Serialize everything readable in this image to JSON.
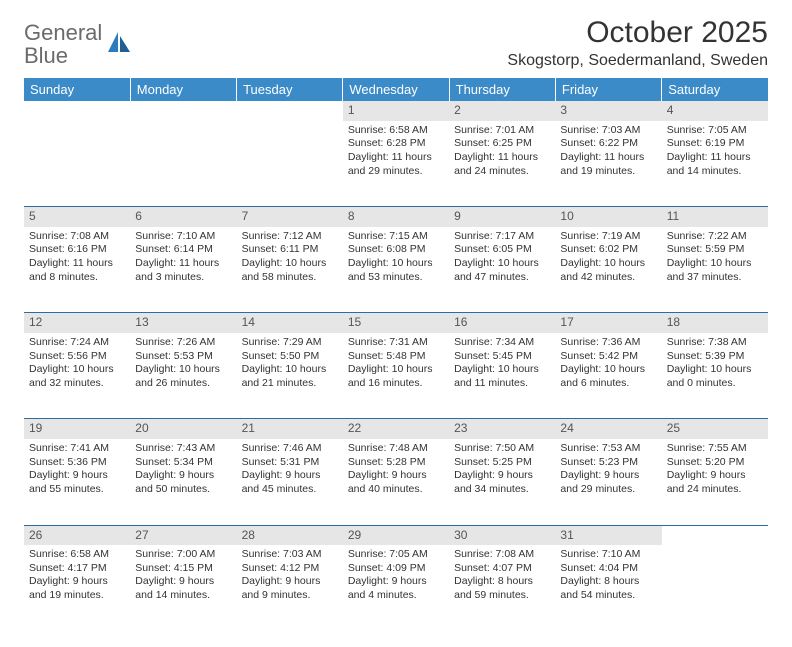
{
  "logo": {
    "part1": "General",
    "part2": "Blue"
  },
  "title": "October 2025",
  "location": "Skogstorp, Soedermanland, Sweden",
  "colors": {
    "header_bg": "#3b8bc8",
    "header_text": "#ffffff",
    "daynum_bg": "#e6e6e6",
    "border": "#2a6ca3",
    "text": "#333333",
    "logo_gray": "#6b6b6b",
    "logo_blue": "#2a7bbf"
  },
  "day_headers": [
    "Sunday",
    "Monday",
    "Tuesday",
    "Wednesday",
    "Thursday",
    "Friday",
    "Saturday"
  ],
  "weeks": [
    [
      null,
      null,
      null,
      {
        "n": "1",
        "sr": "Sunrise: 6:58 AM",
        "ss": "Sunset: 6:28 PM",
        "dl1": "Daylight: 11 hours",
        "dl2": "and 29 minutes."
      },
      {
        "n": "2",
        "sr": "Sunrise: 7:01 AM",
        "ss": "Sunset: 6:25 PM",
        "dl1": "Daylight: 11 hours",
        "dl2": "and 24 minutes."
      },
      {
        "n": "3",
        "sr": "Sunrise: 7:03 AM",
        "ss": "Sunset: 6:22 PM",
        "dl1": "Daylight: 11 hours",
        "dl2": "and 19 minutes."
      },
      {
        "n": "4",
        "sr": "Sunrise: 7:05 AM",
        "ss": "Sunset: 6:19 PM",
        "dl1": "Daylight: 11 hours",
        "dl2": "and 14 minutes."
      }
    ],
    [
      {
        "n": "5",
        "sr": "Sunrise: 7:08 AM",
        "ss": "Sunset: 6:16 PM",
        "dl1": "Daylight: 11 hours",
        "dl2": "and 8 minutes."
      },
      {
        "n": "6",
        "sr": "Sunrise: 7:10 AM",
        "ss": "Sunset: 6:14 PM",
        "dl1": "Daylight: 11 hours",
        "dl2": "and 3 minutes."
      },
      {
        "n": "7",
        "sr": "Sunrise: 7:12 AM",
        "ss": "Sunset: 6:11 PM",
        "dl1": "Daylight: 10 hours",
        "dl2": "and 58 minutes."
      },
      {
        "n": "8",
        "sr": "Sunrise: 7:15 AM",
        "ss": "Sunset: 6:08 PM",
        "dl1": "Daylight: 10 hours",
        "dl2": "and 53 minutes."
      },
      {
        "n": "9",
        "sr": "Sunrise: 7:17 AM",
        "ss": "Sunset: 6:05 PM",
        "dl1": "Daylight: 10 hours",
        "dl2": "and 47 minutes."
      },
      {
        "n": "10",
        "sr": "Sunrise: 7:19 AM",
        "ss": "Sunset: 6:02 PM",
        "dl1": "Daylight: 10 hours",
        "dl2": "and 42 minutes."
      },
      {
        "n": "11",
        "sr": "Sunrise: 7:22 AM",
        "ss": "Sunset: 5:59 PM",
        "dl1": "Daylight: 10 hours",
        "dl2": "and 37 minutes."
      }
    ],
    [
      {
        "n": "12",
        "sr": "Sunrise: 7:24 AM",
        "ss": "Sunset: 5:56 PM",
        "dl1": "Daylight: 10 hours",
        "dl2": "and 32 minutes."
      },
      {
        "n": "13",
        "sr": "Sunrise: 7:26 AM",
        "ss": "Sunset: 5:53 PM",
        "dl1": "Daylight: 10 hours",
        "dl2": "and 26 minutes."
      },
      {
        "n": "14",
        "sr": "Sunrise: 7:29 AM",
        "ss": "Sunset: 5:50 PM",
        "dl1": "Daylight: 10 hours",
        "dl2": "and 21 minutes."
      },
      {
        "n": "15",
        "sr": "Sunrise: 7:31 AM",
        "ss": "Sunset: 5:48 PM",
        "dl1": "Daylight: 10 hours",
        "dl2": "and 16 minutes."
      },
      {
        "n": "16",
        "sr": "Sunrise: 7:34 AM",
        "ss": "Sunset: 5:45 PM",
        "dl1": "Daylight: 10 hours",
        "dl2": "and 11 minutes."
      },
      {
        "n": "17",
        "sr": "Sunrise: 7:36 AM",
        "ss": "Sunset: 5:42 PM",
        "dl1": "Daylight: 10 hours",
        "dl2": "and 6 minutes."
      },
      {
        "n": "18",
        "sr": "Sunrise: 7:38 AM",
        "ss": "Sunset: 5:39 PM",
        "dl1": "Daylight: 10 hours",
        "dl2": "and 0 minutes."
      }
    ],
    [
      {
        "n": "19",
        "sr": "Sunrise: 7:41 AM",
        "ss": "Sunset: 5:36 PM",
        "dl1": "Daylight: 9 hours",
        "dl2": "and 55 minutes."
      },
      {
        "n": "20",
        "sr": "Sunrise: 7:43 AM",
        "ss": "Sunset: 5:34 PM",
        "dl1": "Daylight: 9 hours",
        "dl2": "and 50 minutes."
      },
      {
        "n": "21",
        "sr": "Sunrise: 7:46 AM",
        "ss": "Sunset: 5:31 PM",
        "dl1": "Daylight: 9 hours",
        "dl2": "and 45 minutes."
      },
      {
        "n": "22",
        "sr": "Sunrise: 7:48 AM",
        "ss": "Sunset: 5:28 PM",
        "dl1": "Daylight: 9 hours",
        "dl2": "and 40 minutes."
      },
      {
        "n": "23",
        "sr": "Sunrise: 7:50 AM",
        "ss": "Sunset: 5:25 PM",
        "dl1": "Daylight: 9 hours",
        "dl2": "and 34 minutes."
      },
      {
        "n": "24",
        "sr": "Sunrise: 7:53 AM",
        "ss": "Sunset: 5:23 PM",
        "dl1": "Daylight: 9 hours",
        "dl2": "and 29 minutes."
      },
      {
        "n": "25",
        "sr": "Sunrise: 7:55 AM",
        "ss": "Sunset: 5:20 PM",
        "dl1": "Daylight: 9 hours",
        "dl2": "and 24 minutes."
      }
    ],
    [
      {
        "n": "26",
        "sr": "Sunrise: 6:58 AM",
        "ss": "Sunset: 4:17 PM",
        "dl1": "Daylight: 9 hours",
        "dl2": "and 19 minutes."
      },
      {
        "n": "27",
        "sr": "Sunrise: 7:00 AM",
        "ss": "Sunset: 4:15 PM",
        "dl1": "Daylight: 9 hours",
        "dl2": "and 14 minutes."
      },
      {
        "n": "28",
        "sr": "Sunrise: 7:03 AM",
        "ss": "Sunset: 4:12 PM",
        "dl1": "Daylight: 9 hours",
        "dl2": "and 9 minutes."
      },
      {
        "n": "29",
        "sr": "Sunrise: 7:05 AM",
        "ss": "Sunset: 4:09 PM",
        "dl1": "Daylight: 9 hours",
        "dl2": "and 4 minutes."
      },
      {
        "n": "30",
        "sr": "Sunrise: 7:08 AM",
        "ss": "Sunset: 4:07 PM",
        "dl1": "Daylight: 8 hours",
        "dl2": "and 59 minutes."
      },
      {
        "n": "31",
        "sr": "Sunrise: 7:10 AM",
        "ss": "Sunset: 4:04 PM",
        "dl1": "Daylight: 8 hours",
        "dl2": "and 54 minutes."
      },
      null
    ]
  ]
}
